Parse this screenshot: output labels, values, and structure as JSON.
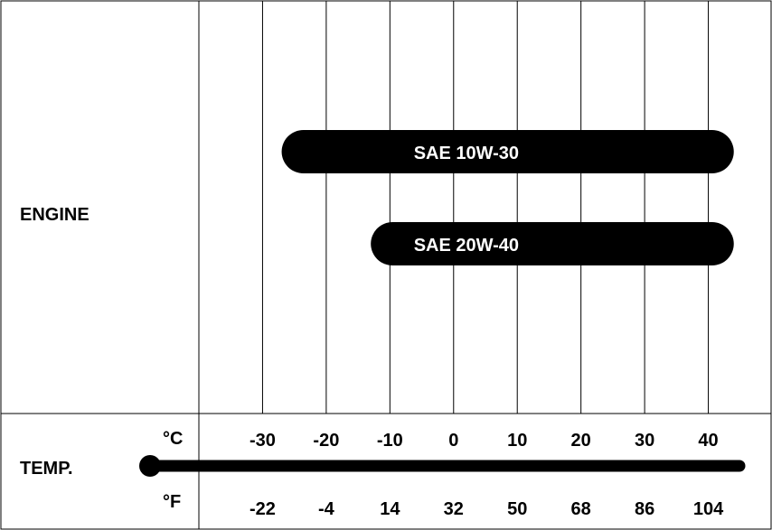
{
  "chart_data": {
    "type": "bar",
    "row_label": "ENGINE",
    "temp_label": "TEMP.",
    "celsius_unit": "°C",
    "fahrenheit_unit": "°F",
    "x_celsius": [
      -30,
      -20,
      -10,
      0,
      10,
      20,
      30,
      40
    ],
    "x_fahrenheit": [
      "-22",
      "-4",
      "14",
      "32",
      "50",
      "68",
      "86",
      "104"
    ],
    "xlim_celsius": [
      -40,
      50
    ],
    "series": [
      {
        "name": "SAE 10W-30",
        "from_c": -27,
        "to_c": 44
      },
      {
        "name": "SAE 20W-40",
        "from_c": -13,
        "to_c": 44
      }
    ],
    "colors": {
      "bar": "#000000",
      "bar_text": "#ffffff",
      "grid": "#000000"
    }
  }
}
